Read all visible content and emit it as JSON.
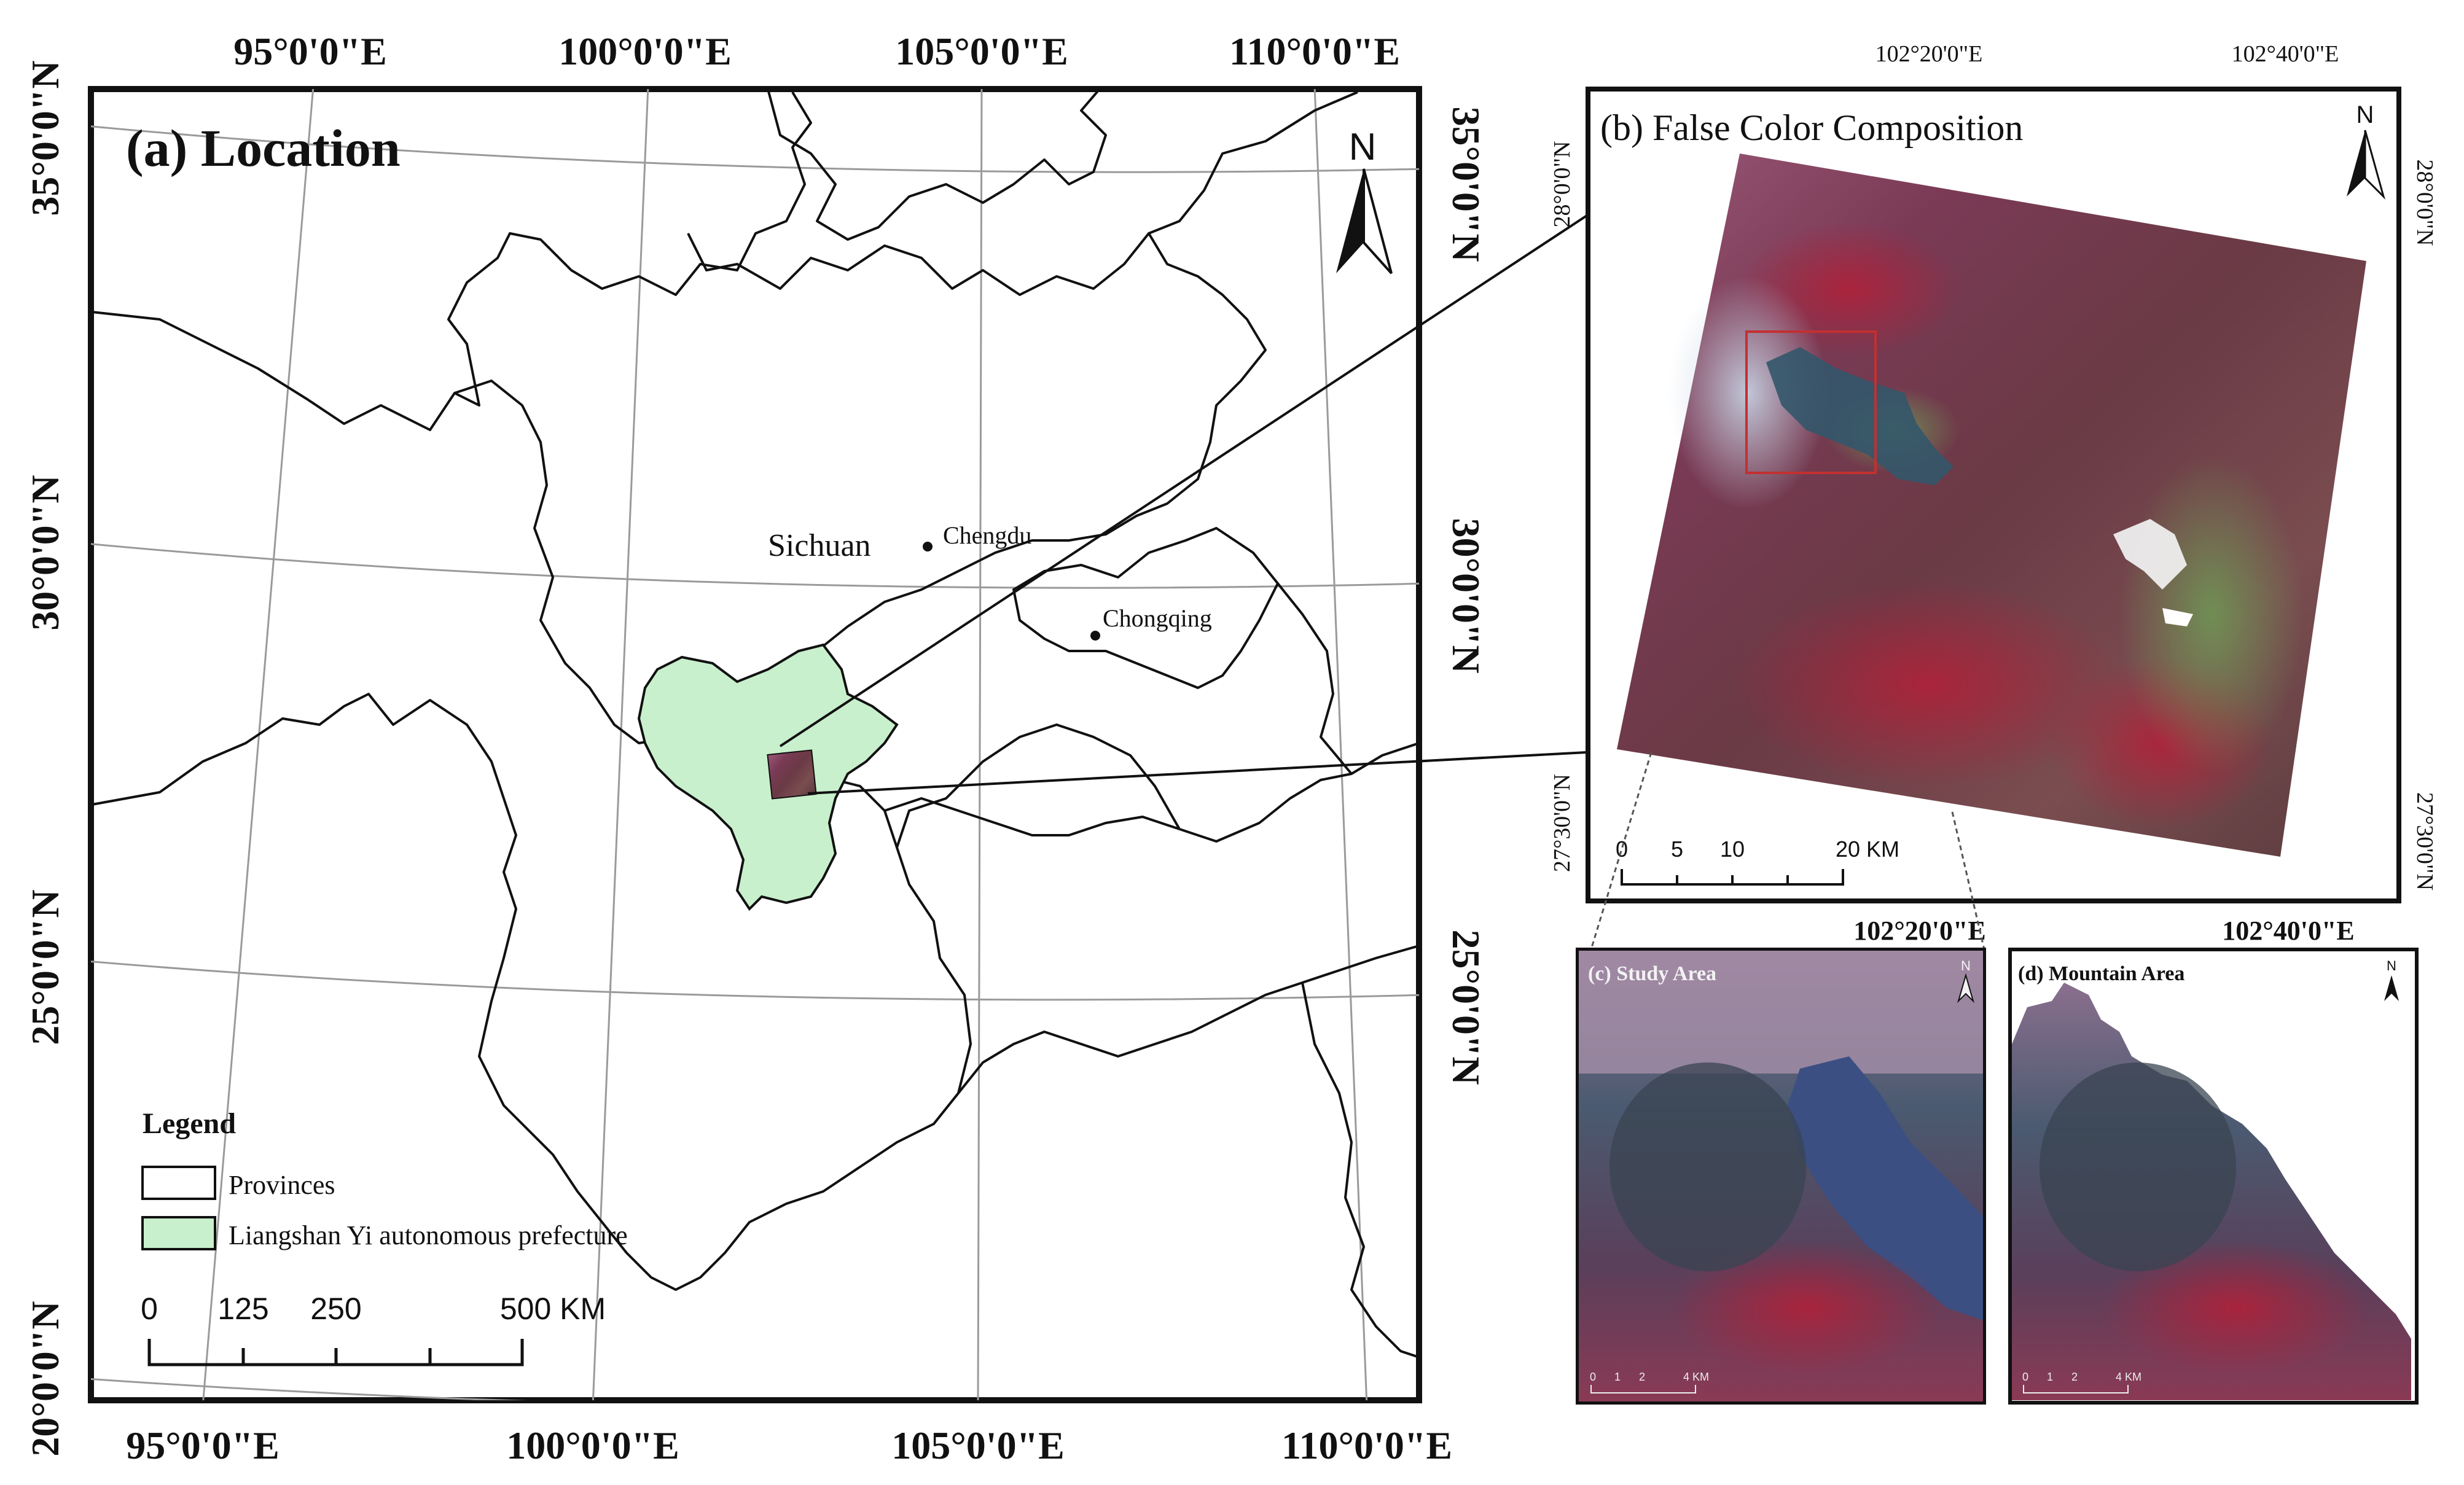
{
  "panel_a": {
    "title": "(a) Location",
    "north_label": "N",
    "top_lon_labels": [
      "95°0'0\"E",
      "100°0'0\"E",
      "105°0'0\"E",
      "110°0'0\"E"
    ],
    "bottom_lon_labels": [
      "95°0'0\"E",
      "100°0'0\"E",
      "105°0'0\"E",
      "110°0'0\"E"
    ],
    "left_lat_labels": [
      "35°0'0\"N",
      "30°0'0\"N",
      "25°0'0\"N",
      "20°0'0\"N"
    ],
    "right_lat_labels": [
      "35°0'0\"N",
      "30°0'0\"N",
      "25°0'0\"N"
    ],
    "places": {
      "sichuan": "Sichuan",
      "chengdu": "Chengdu",
      "chongqing": "Chongqing"
    },
    "legend": {
      "title": "Legend",
      "provinces": "Provinces",
      "liangshan": "Liangshan Yi autonomous prefecture"
    },
    "scale": {
      "ticks": [
        "0",
        "125",
        "250",
        "500 KM"
      ]
    },
    "colors": {
      "liangshan_fill": "#c8f0cc",
      "boundary": "#111111",
      "graticule": "#9a9a9a"
    }
  },
  "panel_b": {
    "title": "(b) False Color Composition",
    "north_label": "N",
    "top_lon_labels": [
      "102°20'0\"E",
      "102°40'0\"E"
    ],
    "bottom_lon_labels": [
      "102°20'0\"E",
      "102°40'0\"E"
    ],
    "left_lat_labels": [
      "28°0'0\"N",
      "27°30'0\"N"
    ],
    "right_lat_labels": [
      "28°0'0\"N",
      "27°30'0\"N"
    ],
    "scale": {
      "ticks": [
        "0",
        "5",
        "10",
        "20 KM"
      ]
    }
  },
  "panel_c": {
    "title": "(c) Study Area",
    "north_label": "N",
    "scale_ticks": [
      "0",
      "1",
      "2",
      "4 KM"
    ]
  },
  "panel_d": {
    "title": "(d) Mountain Area",
    "north_label": "N",
    "scale_ticks": [
      "0",
      "1",
      "2",
      "4 KM"
    ]
  }
}
